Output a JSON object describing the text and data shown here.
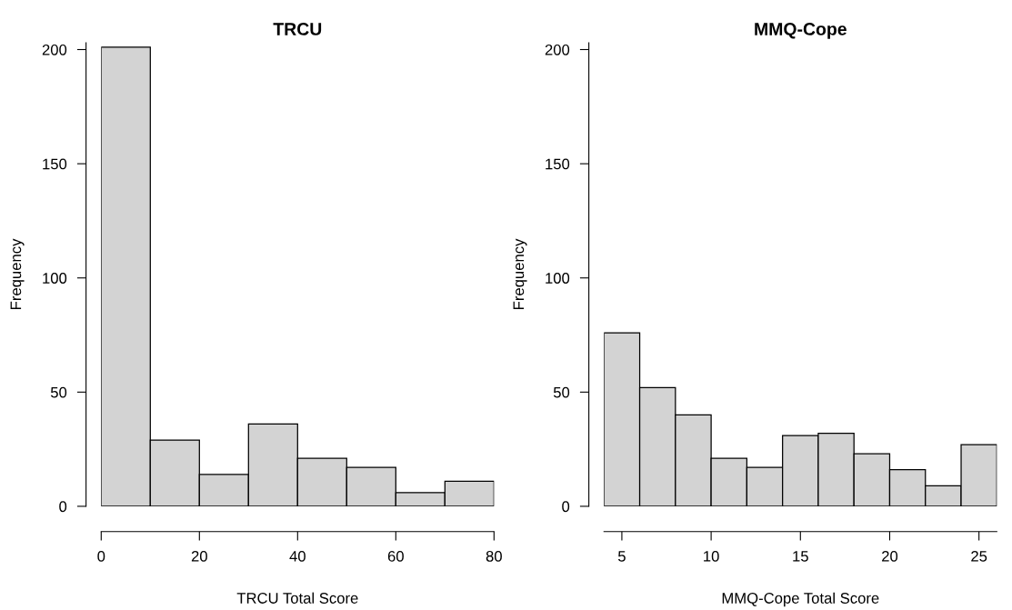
{
  "chart_data": [
    {
      "type": "histogram",
      "title": "TRCU",
      "xlabel": "TRCU Total Score",
      "ylabel": "Frequency",
      "bins": [
        0,
        10,
        20,
        30,
        40,
        50,
        60,
        70,
        80
      ],
      "values": [
        201,
        29,
        14,
        36,
        21,
        17,
        6,
        11
      ],
      "color": "#d3d3d3",
      "xlim": [
        0,
        80
      ],
      "xticks": [
        0,
        20,
        40,
        60,
        80
      ],
      "ylim": [
        0,
        203
      ],
      "yticks": [
        0,
        50,
        100,
        150,
        200
      ],
      "grid": false
    },
    {
      "type": "histogram",
      "title": "MMQ-Cope",
      "xlabel": "MMQ-Cope Total Score",
      "ylabel": "Frequency",
      "bins": [
        4,
        6,
        8,
        10,
        12,
        14,
        16,
        18,
        20,
        22,
        24,
        26
      ],
      "values": [
        76,
        52,
        40,
        21,
        17,
        31,
        32,
        23,
        16,
        9,
        27
      ],
      "color": "#d3d3d3",
      "xlim": [
        4,
        26
      ],
      "xticks": [
        5,
        10,
        15,
        20,
        25
      ],
      "ylim": [
        0,
        203
      ],
      "yticks": [
        0,
        50,
        100,
        150,
        200
      ],
      "grid": false
    }
  ]
}
